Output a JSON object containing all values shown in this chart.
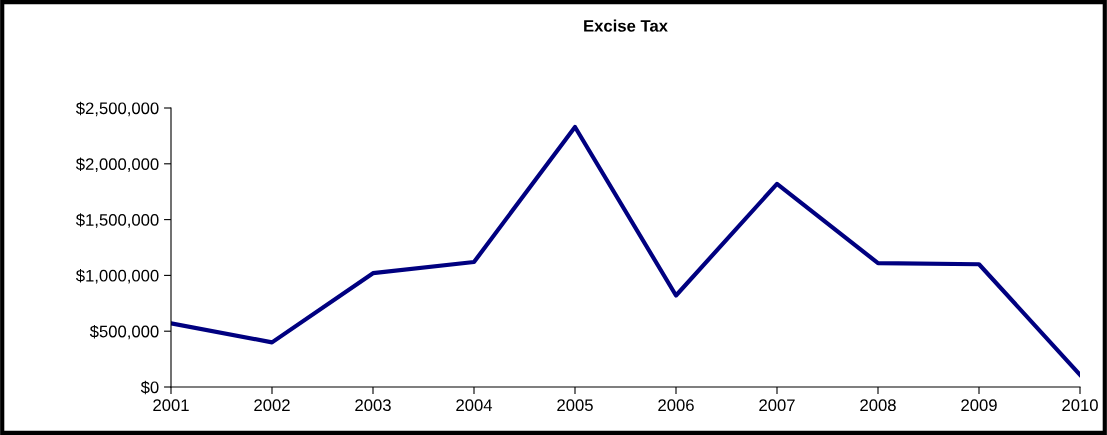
{
  "chart_data": {
    "type": "line",
    "title": "Excise Tax",
    "categories": [
      "2001",
      "2002",
      "2003",
      "2004",
      "2005",
      "2006",
      "2007",
      "2008",
      "2009",
      "2010"
    ],
    "series": [
      {
        "color": "#000080",
        "values": [
          570000,
          400000,
          1020000,
          1120000,
          2330000,
          820000,
          1820000,
          1110000,
          1100000,
          110000
        ]
      }
    ],
    "ylim": [
      0,
      2500000
    ],
    "yticks": [
      {
        "value": 0,
        "label": "$0"
      },
      {
        "value": 500000,
        "label": "$500,000"
      },
      {
        "value": 1000000,
        "label": "$1,000,000"
      },
      {
        "value": 1500000,
        "label": "$1,500,000"
      },
      {
        "value": 2000000,
        "label": "$2,000,000"
      },
      {
        "value": 2500000,
        "label": "$2,500,000"
      }
    ],
    "grid": false,
    "marker": "none",
    "line_style": "solid"
  }
}
